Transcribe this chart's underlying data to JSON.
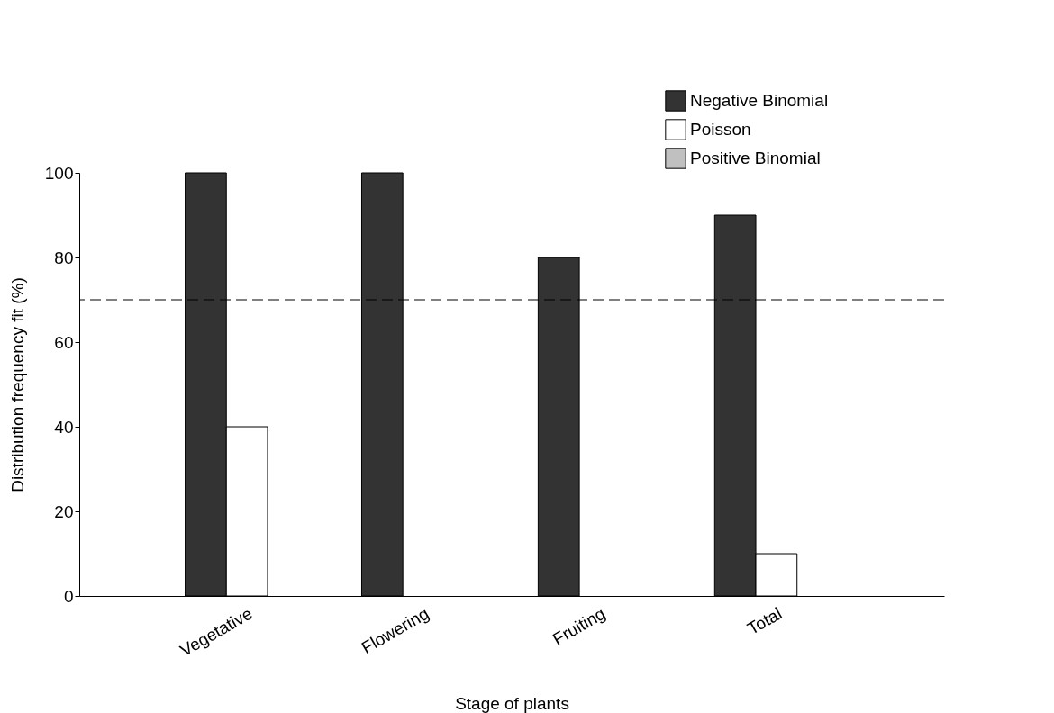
{
  "chart_data": {
    "type": "bar",
    "xlabel": "Stage of plants",
    "ylabel": "Distribution frequency fit (%)",
    "categories": [
      "Vegetative",
      "Flowering",
      "Fruiting",
      "Total"
    ],
    "series": [
      {
        "name": "Negative Binomial",
        "color": "#333333",
        "values": [
          100,
          100,
          80,
          90
        ]
      },
      {
        "name": "Poisson",
        "color": "#ffffff",
        "values": [
          40,
          0,
          0,
          10
        ]
      },
      {
        "name": "Positive Binomial",
        "color": "#c0c0c0",
        "values": [
          0,
          0,
          0,
          0
        ]
      }
    ],
    "ylim": [
      0,
      100
    ],
    "yticks": [
      0,
      20,
      40,
      60,
      80,
      100
    ],
    "grid": false,
    "legend": "top right",
    "ref_lines": [
      {
        "axis": "y",
        "value": 70,
        "line_style": "dashed",
        "color": "#000000"
      }
    ]
  }
}
